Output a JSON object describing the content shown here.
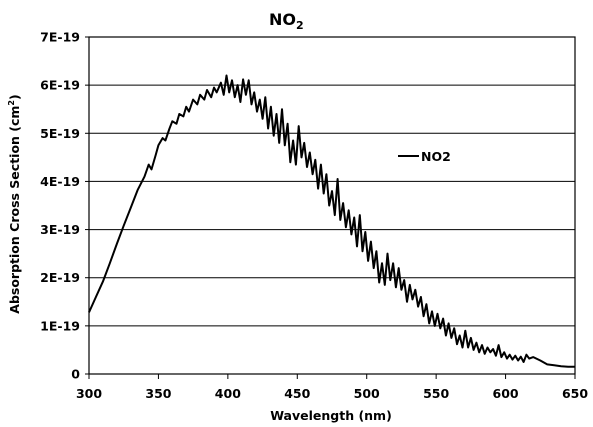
{
  "chart_data": {
    "type": "line",
    "title": {
      "main": "NO",
      "sub": "2"
    },
    "xlabel": "Wavelength (nm)",
    "ylabel": {
      "main": "Absorption Cross Section (cm",
      "sup": "2",
      "end": ")"
    },
    "xlim": [
      300,
      650
    ],
    "ylim": [
      0,
      7e-19
    ],
    "xticks": [
      300,
      350,
      400,
      450,
      500,
      550,
      600,
      650
    ],
    "xtick_labels": [
      "300",
      "350",
      "400",
      "450",
      "500",
      "550",
      "600",
      "650"
    ],
    "yticks": [
      0,
      1e-19,
      2e-19,
      3e-19,
      4e-19,
      5e-19,
      6e-19,
      7e-19
    ],
    "ytick_labels": [
      "0",
      "1E-19",
      "2E-19",
      "3E-19",
      "4E-19",
      "5E-19",
      "6E-19",
      "7E-19"
    ],
    "grid": "horizontal",
    "legend": "right",
    "series": [
      {
        "name": "NO2",
        "color": "#000000",
        "x": [
          300,
          305,
          310,
          315,
          320,
          325,
          330,
          335,
          340,
          343,
          345,
          348,
          350,
          353,
          355,
          358,
          360,
          363,
          365,
          368,
          370,
          372,
          375,
          378,
          380,
          383,
          385,
          388,
          390,
          392,
          395,
          397,
          399,
          401,
          403,
          405,
          407,
          409,
          411,
          413,
          415,
          417,
          419,
          421,
          423,
          425,
          427,
          429,
          431,
          433,
          435,
          437,
          439,
          441,
          443,
          445,
          447,
          449,
          451,
          453,
          455,
          457,
          459,
          461,
          463,
          465,
          467,
          469,
          471,
          473,
          475,
          477,
          479,
          481,
          483,
          485,
          487,
          489,
          491,
          493,
          495,
          497,
          499,
          501,
          503,
          505,
          507,
          509,
          511,
          513,
          515,
          517,
          519,
          521,
          523,
          525,
          527,
          529,
          531,
          533,
          535,
          537,
          539,
          541,
          543,
          545,
          547,
          549,
          551,
          553,
          555,
          557,
          559,
          561,
          563,
          565,
          567,
          569,
          571,
          573,
          575,
          577,
          579,
          581,
          583,
          585,
          587,
          589,
          591,
          593,
          595,
          597,
          599,
          601,
          603,
          605,
          607,
          609,
          611,
          613,
          615,
          617,
          620,
          625,
          630,
          635,
          640,
          645,
          650
        ],
        "y": [
          1.28e-19,
          1.6e-19,
          1.92e-19,
          2.3e-19,
          2.7e-19,
          3.08e-19,
          3.45e-19,
          3.82e-19,
          4.1e-19,
          4.35e-19,
          4.25e-19,
          4.55e-19,
          4.75e-19,
          4.9e-19,
          4.85e-19,
          5.1e-19,
          5.25e-19,
          5.2e-19,
          5.4e-19,
          5.35e-19,
          5.55e-19,
          5.45e-19,
          5.7e-19,
          5.6e-19,
          5.8e-19,
          5.7e-19,
          5.9e-19,
          5.75e-19,
          5.95e-19,
          5.85e-19,
          6.05e-19,
          5.8e-19,
          6.2e-19,
          5.85e-19,
          6.1e-19,
          5.75e-19,
          6e-19,
          5.65e-19,
          6.12e-19,
          5.8e-19,
          6.1e-19,
          5.6e-19,
          5.85e-19,
          5.45e-19,
          5.7e-19,
          5.3e-19,
          5.75e-19,
          5.1e-19,
          5.55e-19,
          4.95e-19,
          5.4e-19,
          4.8e-19,
          5.5e-19,
          4.75e-19,
          5.2e-19,
          4.4e-19,
          4.85e-19,
          4.35e-19,
          5.15e-19,
          4.5e-19,
          4.8e-19,
          4.3e-19,
          4.6e-19,
          4.15e-19,
          4.45e-19,
          3.85e-19,
          4.35e-19,
          3.75e-19,
          4.15e-19,
          3.5e-19,
          3.8e-19,
          3.3e-19,
          4.05e-19,
          3.2e-19,
          3.55e-19,
          3.05e-19,
          3.4e-19,
          2.9e-19,
          3.25e-19,
          2.65e-19,
          3.3e-19,
          2.55e-19,
          2.95e-19,
          2.35e-19,
          2.75e-19,
          2.2e-19,
          2.55e-19,
          1.9e-19,
          2.3e-19,
          1.85e-19,
          2.5e-19,
          1.95e-19,
          2.3e-19,
          1.8e-19,
          2.2e-19,
          1.75e-19,
          1.95e-19,
          1.5e-19,
          1.85e-19,
          1.55e-19,
          1.75e-19,
          1.4e-19,
          1.6e-19,
          1.2e-19,
          1.45e-19,
          1.05e-19,
          1.3e-19,
          1e-19,
          1.25e-19,
          9.5e-20,
          1.15e-19,
          8e-20,
          1.05e-19,
          7.5e-20,
          9.5e-20,
          6.2e-20,
          8e-20,
          5.5e-20,
          9e-20,
          5.5e-20,
          7.5e-20,
          5e-20,
          6.5e-20,
          4.5e-20,
          6e-20,
          4.2e-20,
          5.5e-20,
          4.5e-20,
          5.2e-20,
          3.8e-20,
          6e-20,
          3.5e-20,
          4.5e-20,
          3.2e-20,
          4e-20,
          3e-20,
          3.8e-20,
          2.8e-20,
          3.6e-20,
          2.5e-20,
          4e-20,
          3.2e-20,
          3.5e-20,
          2.8e-20,
          2e-20,
          1.8e-20,
          1.6e-20,
          1.5e-20,
          1.5e-20
        ]
      }
    ]
  }
}
